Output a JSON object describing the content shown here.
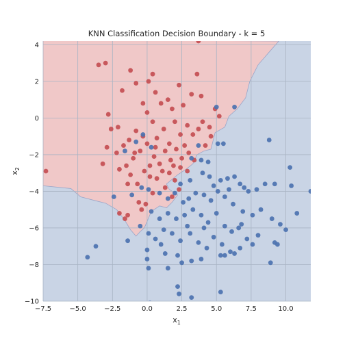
{
  "chart_data": {
    "type": "scatter",
    "title": "KNN Classification Decision Boundary - k = 5",
    "xlabel": "x",
    "xlabel_sub": "1",
    "ylabel": "x",
    "ylabel_sub": "2",
    "xlim": [
      -7.5,
      11.8
    ],
    "ylim": [
      -10,
      4.2
    ],
    "xticks": [
      "−7.5",
      "−5.0",
      "−2.5",
      "0.0",
      "2.5",
      "5.0",
      "7.5",
      "10.0"
    ],
    "yticks": [
      "−10",
      "−8",
      "−6",
      "−4",
      "−2",
      "0",
      "2",
      "4"
    ],
    "grid": true,
    "colors": {
      "class_red": "#c44e52",
      "class_blue": "#4c72b0",
      "region_red": "#f0c8c8",
      "region_blue": "#c9d4e5",
      "grid": "#a9b4c4"
    },
    "boundary": [
      [
        -7.5,
        -3.7
      ],
      [
        -5.5,
        -3.85
      ],
      [
        -4.8,
        -4.3
      ],
      [
        -3.8,
        -4.5
      ],
      [
        -3.0,
        -4.65
      ],
      [
        -2.2,
        -5.0
      ],
      [
        -1.6,
        -5.6
      ],
      [
        -1.2,
        -6.1
      ],
      [
        -0.8,
        -6.45
      ],
      [
        -0.5,
        -6.2
      ],
      [
        -0.2,
        -6.0
      ],
      [
        0.3,
        -5.1
      ],
      [
        0.9,
        -4.8
      ],
      [
        1.4,
        -4.9
      ],
      [
        1.8,
        -4.6
      ],
      [
        2.2,
        -4.2
      ],
      [
        1.6,
        -3.9
      ],
      [
        1.4,
        -3.6
      ],
      [
        2.2,
        -3.1
      ],
      [
        2.8,
        -2.8
      ],
      [
        3.3,
        -2.5
      ],
      [
        3.6,
        -2.0
      ],
      [
        4.1,
        -1.8
      ],
      [
        4.6,
        -1.7
      ],
      [
        4.9,
        -0.8
      ],
      [
        5.6,
        -0.5
      ],
      [
        5.9,
        0.1
      ],
      [
        6.5,
        0.5
      ],
      [
        7.1,
        1.1
      ],
      [
        7.4,
        2.0
      ],
      [
        8.0,
        2.9
      ],
      [
        8.8,
        3.6
      ],
      [
        9.5,
        4.2
      ]
    ],
    "series": [
      {
        "name": "",
        "color": "#c44e52",
        "points": [
          [
            -3.5,
            2.9
          ],
          [
            -3.0,
            3.0
          ],
          [
            -1.8,
            1.5
          ],
          [
            -1.2,
            2.6
          ],
          [
            -0.8,
            1.9
          ],
          [
            -0.3,
            0.8
          ],
          [
            0.1,
            2.0
          ],
          [
            0.4,
            2.4
          ],
          [
            0.6,
            1.4
          ],
          [
            1.0,
            0.8
          ],
          [
            1.5,
            1.0
          ],
          [
            1.8,
            0.5
          ],
          [
            2.3,
            1.8
          ],
          [
            2.6,
            0.7
          ],
          [
            3.2,
            1.3
          ],
          [
            3.6,
            2.4
          ],
          [
            3.9,
            1.2
          ],
          [
            3.7,
            4.2
          ],
          [
            4.0,
            -0.2
          ],
          [
            4.5,
            -0.5
          ],
          [
            4.9,
            0.5
          ],
          [
            5.2,
            0.1
          ],
          [
            4.6,
            -1.0
          ],
          [
            4.2,
            -1.5
          ],
          [
            -2.8,
            0.2
          ],
          [
            -2.6,
            -0.6
          ],
          [
            -2.1,
            -0.5
          ],
          [
            -1.7,
            -1.5
          ],
          [
            -1.3,
            -1.2
          ],
          [
            -0.8,
            -0.7
          ],
          [
            -0.3,
            -1.0
          ],
          [
            0.0,
            0.3
          ],
          [
            0.4,
            -0.2
          ],
          [
            0.7,
            -1.1
          ],
          [
            1.2,
            -0.6
          ],
          [
            1.6,
            -1.4
          ],
          [
            2.0,
            -0.2
          ],
          [
            2.4,
            -0.9
          ],
          [
            2.9,
            -0.4
          ],
          [
            3.3,
            -0.9
          ],
          [
            3.7,
            -0.6
          ],
          [
            -2.9,
            -1.6
          ],
          [
            -2.2,
            -1.9
          ],
          [
            -1.5,
            -2.6
          ],
          [
            -1.0,
            -2.2
          ],
          [
            -0.5,
            -1.8
          ],
          [
            0.0,
            -1.4
          ],
          [
            0.5,
            -2.1
          ],
          [
            0.9,
            -2.5
          ],
          [
            1.3,
            -1.8
          ],
          [
            1.7,
            -2.3
          ],
          [
            2.1,
            -1.7
          ],
          [
            2.5,
            -2.2
          ],
          [
            3.0,
            -1.9
          ],
          [
            3.4,
            -2.3
          ],
          [
            -3.2,
            -2.5
          ],
          [
            -2.0,
            -2.8
          ],
          [
            -1.2,
            -3.1
          ],
          [
            -0.7,
            -3.6
          ],
          [
            -0.2,
            -2.9
          ],
          [
            0.2,
            -2.6
          ],
          [
            0.7,
            -3.3
          ],
          [
            1.1,
            -2.9
          ],
          [
            1.6,
            -3.0
          ],
          [
            2.0,
            -3.4
          ],
          [
            2.4,
            -2.7
          ],
          [
            2.9,
            -2.9
          ],
          [
            -1.4,
            -3.6
          ],
          [
            -0.6,
            -4.6
          ],
          [
            -0.1,
            -4.7
          ],
          [
            0.4,
            -4.1
          ],
          [
            1.3,
            -3.8
          ],
          [
            1.8,
            -4.3
          ],
          [
            2.3,
            -3.9
          ],
          [
            -2.0,
            -5.2
          ],
          [
            -1.6,
            -5.5
          ],
          [
            -0.4,
            -5.0
          ],
          [
            -7.3,
            -2.9
          ],
          [
            -1.4,
            -5.3
          ],
          [
            0.2,
            -3.2
          ],
          [
            0.6,
            -1.6
          ],
          [
            1.9,
            -2.6
          ],
          [
            2.7,
            -1.5
          ],
          [
            -0.9,
            -1.9
          ]
        ]
      },
      {
        "name": "",
        "color": "#4c72b0",
        "points": [
          [
            5.0,
            0.6
          ],
          [
            6.3,
            0.6
          ],
          [
            5.1,
            -1.4
          ],
          [
            5.5,
            -1.4
          ],
          [
            8.8,
            -1.2
          ],
          [
            3.7,
            -1.5
          ],
          [
            4.4,
            -2.4
          ],
          [
            -1.6,
            -1.8
          ],
          [
            -0.8,
            -1.3
          ],
          [
            -0.3,
            -0.9
          ],
          [
            0.3,
            -1.6
          ],
          [
            3.2,
            -2.2
          ],
          [
            3.9,
            -2.3
          ],
          [
            4.0,
            -3.0
          ],
          [
            3.1,
            -3.4
          ],
          [
            2.4,
            -3.6
          ],
          [
            4.5,
            -3.2
          ],
          [
            4.8,
            -3.7
          ],
          [
            5.3,
            -3.4
          ],
          [
            5.8,
            -3.3
          ],
          [
            6.3,
            -3.2
          ],
          [
            6.7,
            -3.6
          ],
          [
            7.0,
            -3.8
          ],
          [
            7.3,
            -4.0
          ],
          [
            7.9,
            -3.9
          ],
          [
            8.5,
            -3.6
          ],
          [
            9.2,
            -3.6
          ],
          [
            10.4,
            -3.7
          ],
          [
            10.3,
            -2.7
          ],
          [
            11.8,
            -4.0
          ],
          [
            -2.4,
            -4.3
          ],
          [
            -1.1,
            -4.2
          ],
          [
            -0.4,
            -3.8
          ],
          [
            0.1,
            -3.9
          ],
          [
            0.9,
            -4.1
          ],
          [
            1.5,
            -4.4
          ],
          [
            2.0,
            -4.1
          ],
          [
            2.6,
            -4.6
          ],
          [
            3.0,
            -4.4
          ],
          [
            3.5,
            -4.1
          ],
          [
            4.1,
            -4.2
          ],
          [
            4.6,
            -4.5
          ],
          [
            5.1,
            -4.0
          ],
          [
            5.6,
            -4.3
          ],
          [
            6.2,
            -4.7
          ],
          [
            6.9,
            -5.1
          ],
          [
            7.6,
            -5.3
          ],
          [
            8.2,
            -5.0
          ],
          [
            9.0,
            -5.5
          ],
          [
            9.6,
            -5.8
          ],
          [
            10.8,
            -5.2
          ],
          [
            0.3,
            -5.1
          ],
          [
            0.9,
            -5.5
          ],
          [
            1.5,
            -5.2
          ],
          [
            2.1,
            -5.5
          ],
          [
            2.7,
            -5.3
          ],
          [
            3.3,
            -5.0
          ],
          [
            3.9,
            -5.3
          ],
          [
            4.4,
            -5.7
          ],
          [
            5.0,
            -5.2
          ],
          [
            5.6,
            -5.9
          ],
          [
            6.1,
            -6.2
          ],
          [
            6.6,
            -6.0
          ],
          [
            7.2,
            -6.6
          ],
          [
            8.0,
            -6.4
          ],
          [
            0.1,
            -6.3
          ],
          [
            0.6,
            -6.6
          ],
          [
            1.2,
            -6.1
          ],
          [
            1.8,
            -6.3
          ],
          [
            2.4,
            -6.7
          ],
          [
            3.1,
            -6.3
          ],
          [
            3.7,
            -6.8
          ],
          [
            4.3,
            -7.1
          ],
          [
            4.8,
            -6.5
          ],
          [
            5.4,
            -6.9
          ],
          [
            6.0,
            -7.3
          ],
          [
            6.7,
            -7.1
          ],
          [
            7.6,
            -6.9
          ],
          [
            9.2,
            -6.8
          ],
          [
            9.4,
            -6.9
          ],
          [
            10.0,
            -6.1
          ],
          [
            -4.3,
            -7.6
          ],
          [
            -3.7,
            -7.0
          ],
          [
            -1.4,
            -6.7
          ],
          [
            0.0,
            -7.2
          ],
          [
            0.0,
            -7.7
          ],
          [
            0.1,
            -8.2
          ],
          [
            1.3,
            -7.4
          ],
          [
            1.5,
            -8.2
          ],
          [
            2.2,
            -7.5
          ],
          [
            2.5,
            -7.9
          ],
          [
            3.2,
            -7.8
          ],
          [
            3.9,
            -7.7
          ],
          [
            5.3,
            -7.5
          ],
          [
            5.6,
            -7.5
          ],
          [
            6.3,
            -7.4
          ],
          [
            8.9,
            -7.9
          ],
          [
            2.2,
            -9.2
          ],
          [
            2.3,
            -9.6
          ],
          [
            3.2,
            -9.8
          ],
          [
            5.3,
            -9.5
          ],
          [
            0.2,
            -10.1
          ],
          [
            -0.5,
            -5.9
          ],
          [
            1.0,
            -6.9
          ],
          [
            2.9,
            -5.9
          ],
          [
            4.1,
            -6.0
          ],
          [
            6.8,
            -5.8
          ],
          [
            5.9,
            -3.9
          ]
        ]
      }
    ]
  }
}
